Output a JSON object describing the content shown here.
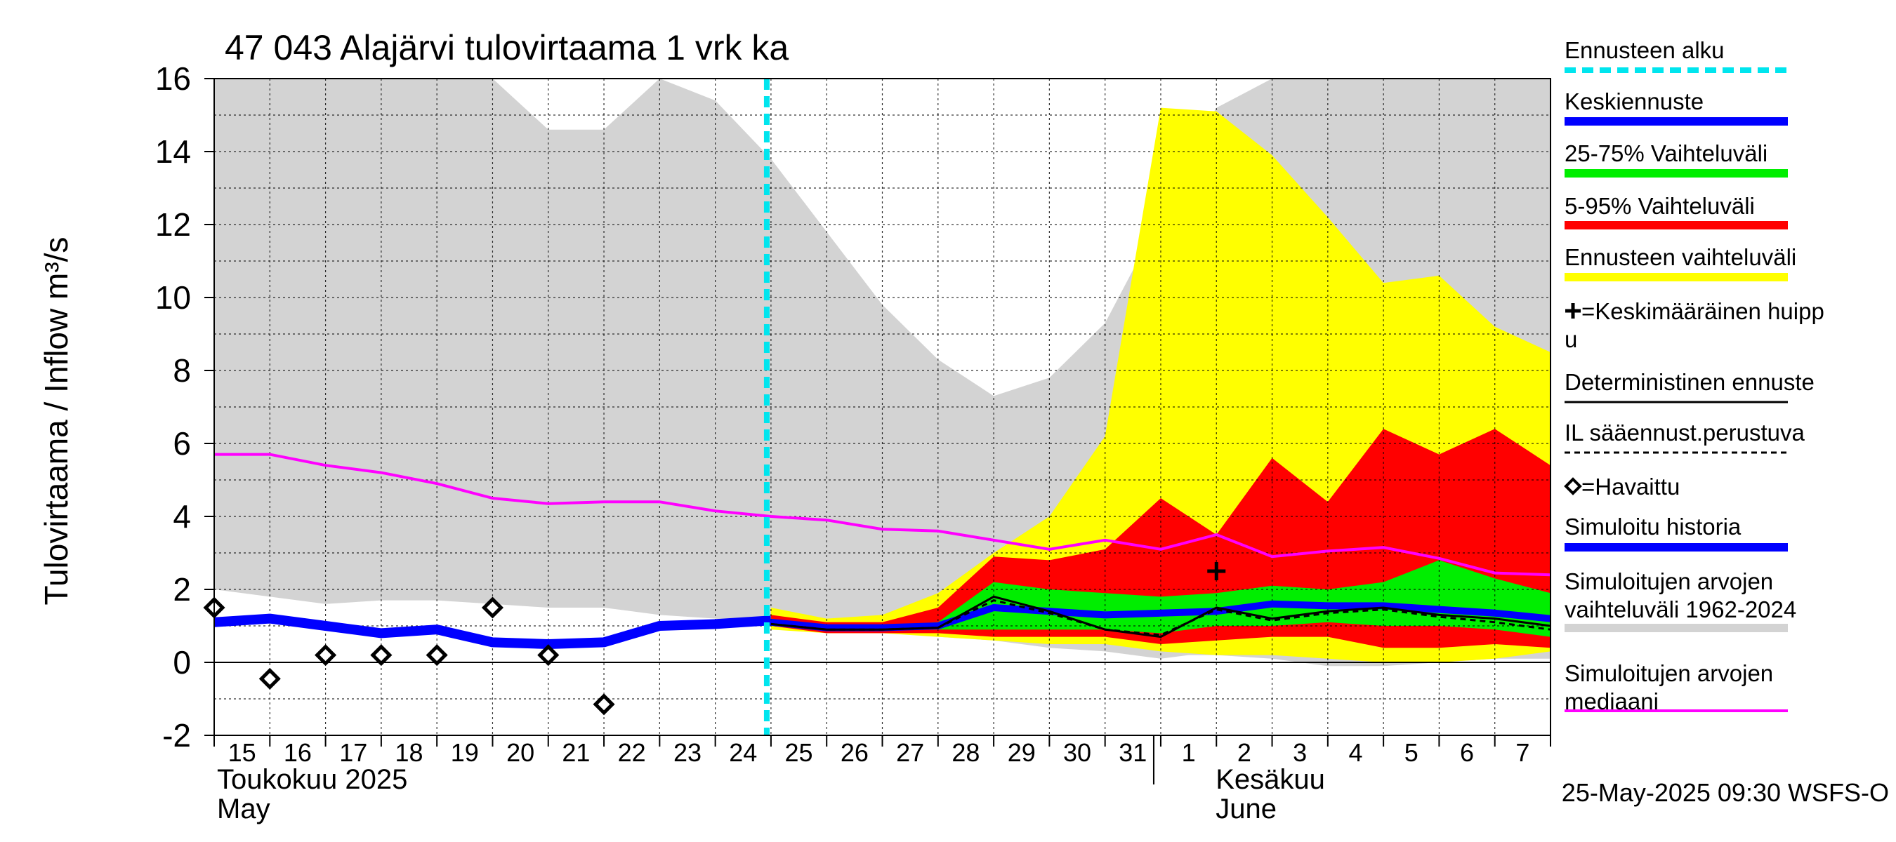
{
  "chart_data": {
    "type": "area",
    "title": "47 043 Alajärvi tulovirtaama 1 vrk ka",
    "ylabel": "Tulovirtaama / Inflow    m³/s",
    "ylim": [
      -2,
      16
    ],
    "yticks": [
      "-2",
      "0",
      "2",
      "4",
      "6",
      "8",
      "10",
      "12",
      "14",
      "16"
    ],
    "ytick_values": [
      -2,
      0,
      2,
      4,
      6,
      8,
      10,
      12,
      14,
      16
    ],
    "x_days": [
      "15",
      "16",
      "17",
      "18",
      "19",
      "20",
      "21",
      "22",
      "23",
      "24",
      "25",
      "26",
      "27",
      "28",
      "29",
      "30",
      "31",
      "1",
      "2",
      "3",
      "4",
      "5",
      "6",
      "7"
    ],
    "month_labels": [
      {
        "line1": "Toukokuu  2025",
        "line2": "May"
      },
      {
        "line1": "Kesäkuu",
        "line2": "June"
      }
    ],
    "forecast_start_index": 10,
    "grid": true,
    "legend_position": "right",
    "footer": "25-May-2025 09:30 WSFS-O",
    "colors": {
      "forecast_start": "#00e5ee",
      "mean_forecast": "#0000ff",
      "band_25_75": "#00ee00",
      "band_5_95": "#ff0000",
      "forecast_range": "#ffff00",
      "mean_peak": "#000000",
      "deterministic": "#000000",
      "il_forecast": "#000000",
      "observed": "#000000",
      "simulated_history": "#0000ff",
      "history_range": "#d3d3d3",
      "history_median": "#ff00ff"
    },
    "legend": [
      {
        "key": "forecast_start",
        "lines": [
          "Ennusteen alku"
        ],
        "style": "dashed-cyan"
      },
      {
        "key": "mean_forecast",
        "lines": [
          "Keskiennuste"
        ],
        "style": "thick-blue"
      },
      {
        "key": "band_25_75",
        "lines": [
          "25-75% Vaihteluväli"
        ],
        "style": "thick-green"
      },
      {
        "key": "band_5_95",
        "lines": [
          "5-95% Vaihteluväli"
        ],
        "style": "thick-red"
      },
      {
        "key": "forecast_range",
        "lines": [
          "Ennusteen vaihteluväli"
        ],
        "style": "thick-yellow"
      },
      {
        "key": "mean_peak",
        "lines": [
          "=Keskimääräinen huipp",
          "u"
        ],
        "style": "plus"
      },
      {
        "key": "deterministic",
        "lines": [
          "Deterministinen ennuste"
        ],
        "style": "thin-black"
      },
      {
        "key": "il_forecast",
        "lines": [
          "IL sääennust.perustuva"
        ],
        "style": "dashed-black"
      },
      {
        "key": "observed",
        "lines": [
          "=Havaittu"
        ],
        "style": "diamond"
      },
      {
        "key": "simulated_history",
        "lines": [
          "Simuloitu historia"
        ],
        "style": "thick-blue"
      },
      {
        "key": "history_range",
        "lines": [
          "Simuloitujen arvojen",
          "vaihteluväli 1962-2024"
        ],
        "style": "thick-gray"
      },
      {
        "key": "history_median",
        "lines": [
          "Simuloitujen arvojen",
          "mediaani"
        ],
        "style": "magenta"
      }
    ],
    "series": {
      "history_range_x": [
        0,
        1,
        2,
        3,
        4,
        5,
        6,
        7,
        8,
        9,
        10,
        11,
        12,
        13,
        14,
        15,
        16,
        17,
        17.5,
        18,
        19,
        20,
        20.5,
        21,
        22,
        23,
        24
      ],
      "history_range_upper": [
        16,
        16,
        16,
        16,
        16,
        16,
        16,
        16,
        16,
        16,
        16,
        16,
        16,
        16,
        16,
        16,
        16,
        16,
        16,
        16,
        16,
        16,
        16,
        16,
        16,
        16,
        16
      ],
      "history_range_upper_actual": [
        16,
        16,
        16,
        16,
        16,
        16,
        14.6,
        14.6,
        16,
        15.4,
        13.8,
        11.8,
        9.8,
        8.3,
        7.3,
        7.8,
        9.3,
        12.2,
        14,
        15.2,
        16,
        16,
        16,
        16,
        16,
        16,
        16
      ],
      "history_range_lower": [
        2.0,
        1.8,
        1.6,
        1.7,
        1.7,
        1.6,
        1.5,
        1.5,
        1.3,
        1.2,
        1.0,
        0.9,
        0.9,
        0.7,
        0.6,
        0.4,
        0.3,
        0.1,
        0.2,
        0.2,
        0.1,
        -0.1,
        -0.1,
        -0.1,
        0.0,
        0.1,
        0.1
      ],
      "forecast_x": [
        10,
        11,
        12,
        13,
        14,
        15,
        16,
        17,
        18,
        19,
        20,
        21,
        22,
        23,
        24
      ],
      "forecast_range_upper": [
        1.5,
        1.2,
        1.3,
        1.9,
        3.0,
        4.0,
        6.2,
        15.2,
        15.1,
        13.9,
        12.2,
        10.4,
        10.6,
        9.2,
        8.5
      ],
      "forecast_range_lower": [
        0.9,
        0.8,
        0.8,
        0.7,
        0.6,
        0.5,
        0.5,
        0.3,
        0.2,
        0.2,
        0.1,
        0.0,
        0.0,
        0.1,
        0.3
      ],
      "band_5_95_upper": [
        1.3,
        1.1,
        1.1,
        1.5,
        2.9,
        2.8,
        3.1,
        4.5,
        3.5,
        5.6,
        4.4,
        6.4,
        5.7,
        6.4,
        5.4
      ],
      "band_5_95_lower": [
        1.0,
        0.8,
        0.8,
        0.8,
        0.7,
        0.7,
        0.7,
        0.5,
        0.6,
        0.7,
        0.7,
        0.4,
        0.4,
        0.5,
        0.4
      ],
      "band_25_75_upper": [
        1.2,
        1.0,
        1.0,
        1.1,
        2.2,
        2.0,
        1.9,
        1.8,
        1.9,
        2.1,
        2.0,
        2.2,
        2.8,
        2.3,
        1.9
      ],
      "band_25_75_lower": [
        1.0,
        0.9,
        0.9,
        0.9,
        0.9,
        0.9,
        0.9,
        0.8,
        1.0,
        1.0,
        1.1,
        1.0,
        1.0,
        0.9,
        0.7
      ],
      "mean_forecast": [
        1.1,
        0.95,
        0.95,
        1.0,
        1.5,
        1.4,
        1.3,
        1.35,
        1.4,
        1.6,
        1.55,
        1.55,
        1.45,
        1.35,
        1.2
      ],
      "deterministic": [
        1.05,
        0.9,
        0.9,
        0.95,
        1.8,
        1.4,
        0.9,
        0.7,
        1.5,
        1.2,
        1.4,
        1.5,
        1.3,
        1.2,
        1.0
      ],
      "il_forecast": [
        1.05,
        0.9,
        0.9,
        0.95,
        1.7,
        1.35,
        0.9,
        0.75,
        1.45,
        1.15,
        1.35,
        1.45,
        1.25,
        1.1,
        0.9
      ],
      "simulated_history_x": [
        0,
        1,
        2,
        3,
        4,
        5,
        6,
        7,
        8,
        9,
        10
      ],
      "simulated_history": [
        1.1,
        1.2,
        1.0,
        0.8,
        0.9,
        0.55,
        0.5,
        0.55,
        1.0,
        1.05,
        1.15
      ],
      "history_median_x": [
        0,
        1,
        2,
        3,
        4,
        5,
        6,
        7,
        8,
        9,
        10,
        11,
        12,
        13,
        14,
        15,
        16,
        17,
        18,
        19,
        20,
        21,
        22,
        23,
        24
      ],
      "history_median": [
        5.7,
        5.7,
        5.4,
        5.2,
        4.9,
        4.5,
        4.35,
        4.4,
        4.4,
        4.15,
        4.0,
        3.9,
        3.65,
        3.6,
        3.35,
        3.1,
        3.35,
        3.1,
        3.5,
        2.9,
        3.05,
        3.15,
        2.85,
        2.45,
        2.4
      ],
      "observed_x": [
        0,
        1,
        2,
        3,
        4,
        5,
        6,
        7
      ],
      "observed": [
        1.5,
        -0.45,
        0.2,
        0.2,
        0.2,
        1.5,
        0.2,
        -1.15
      ],
      "mean_peak_x": 18,
      "mean_peak_y": 2.5
    }
  }
}
